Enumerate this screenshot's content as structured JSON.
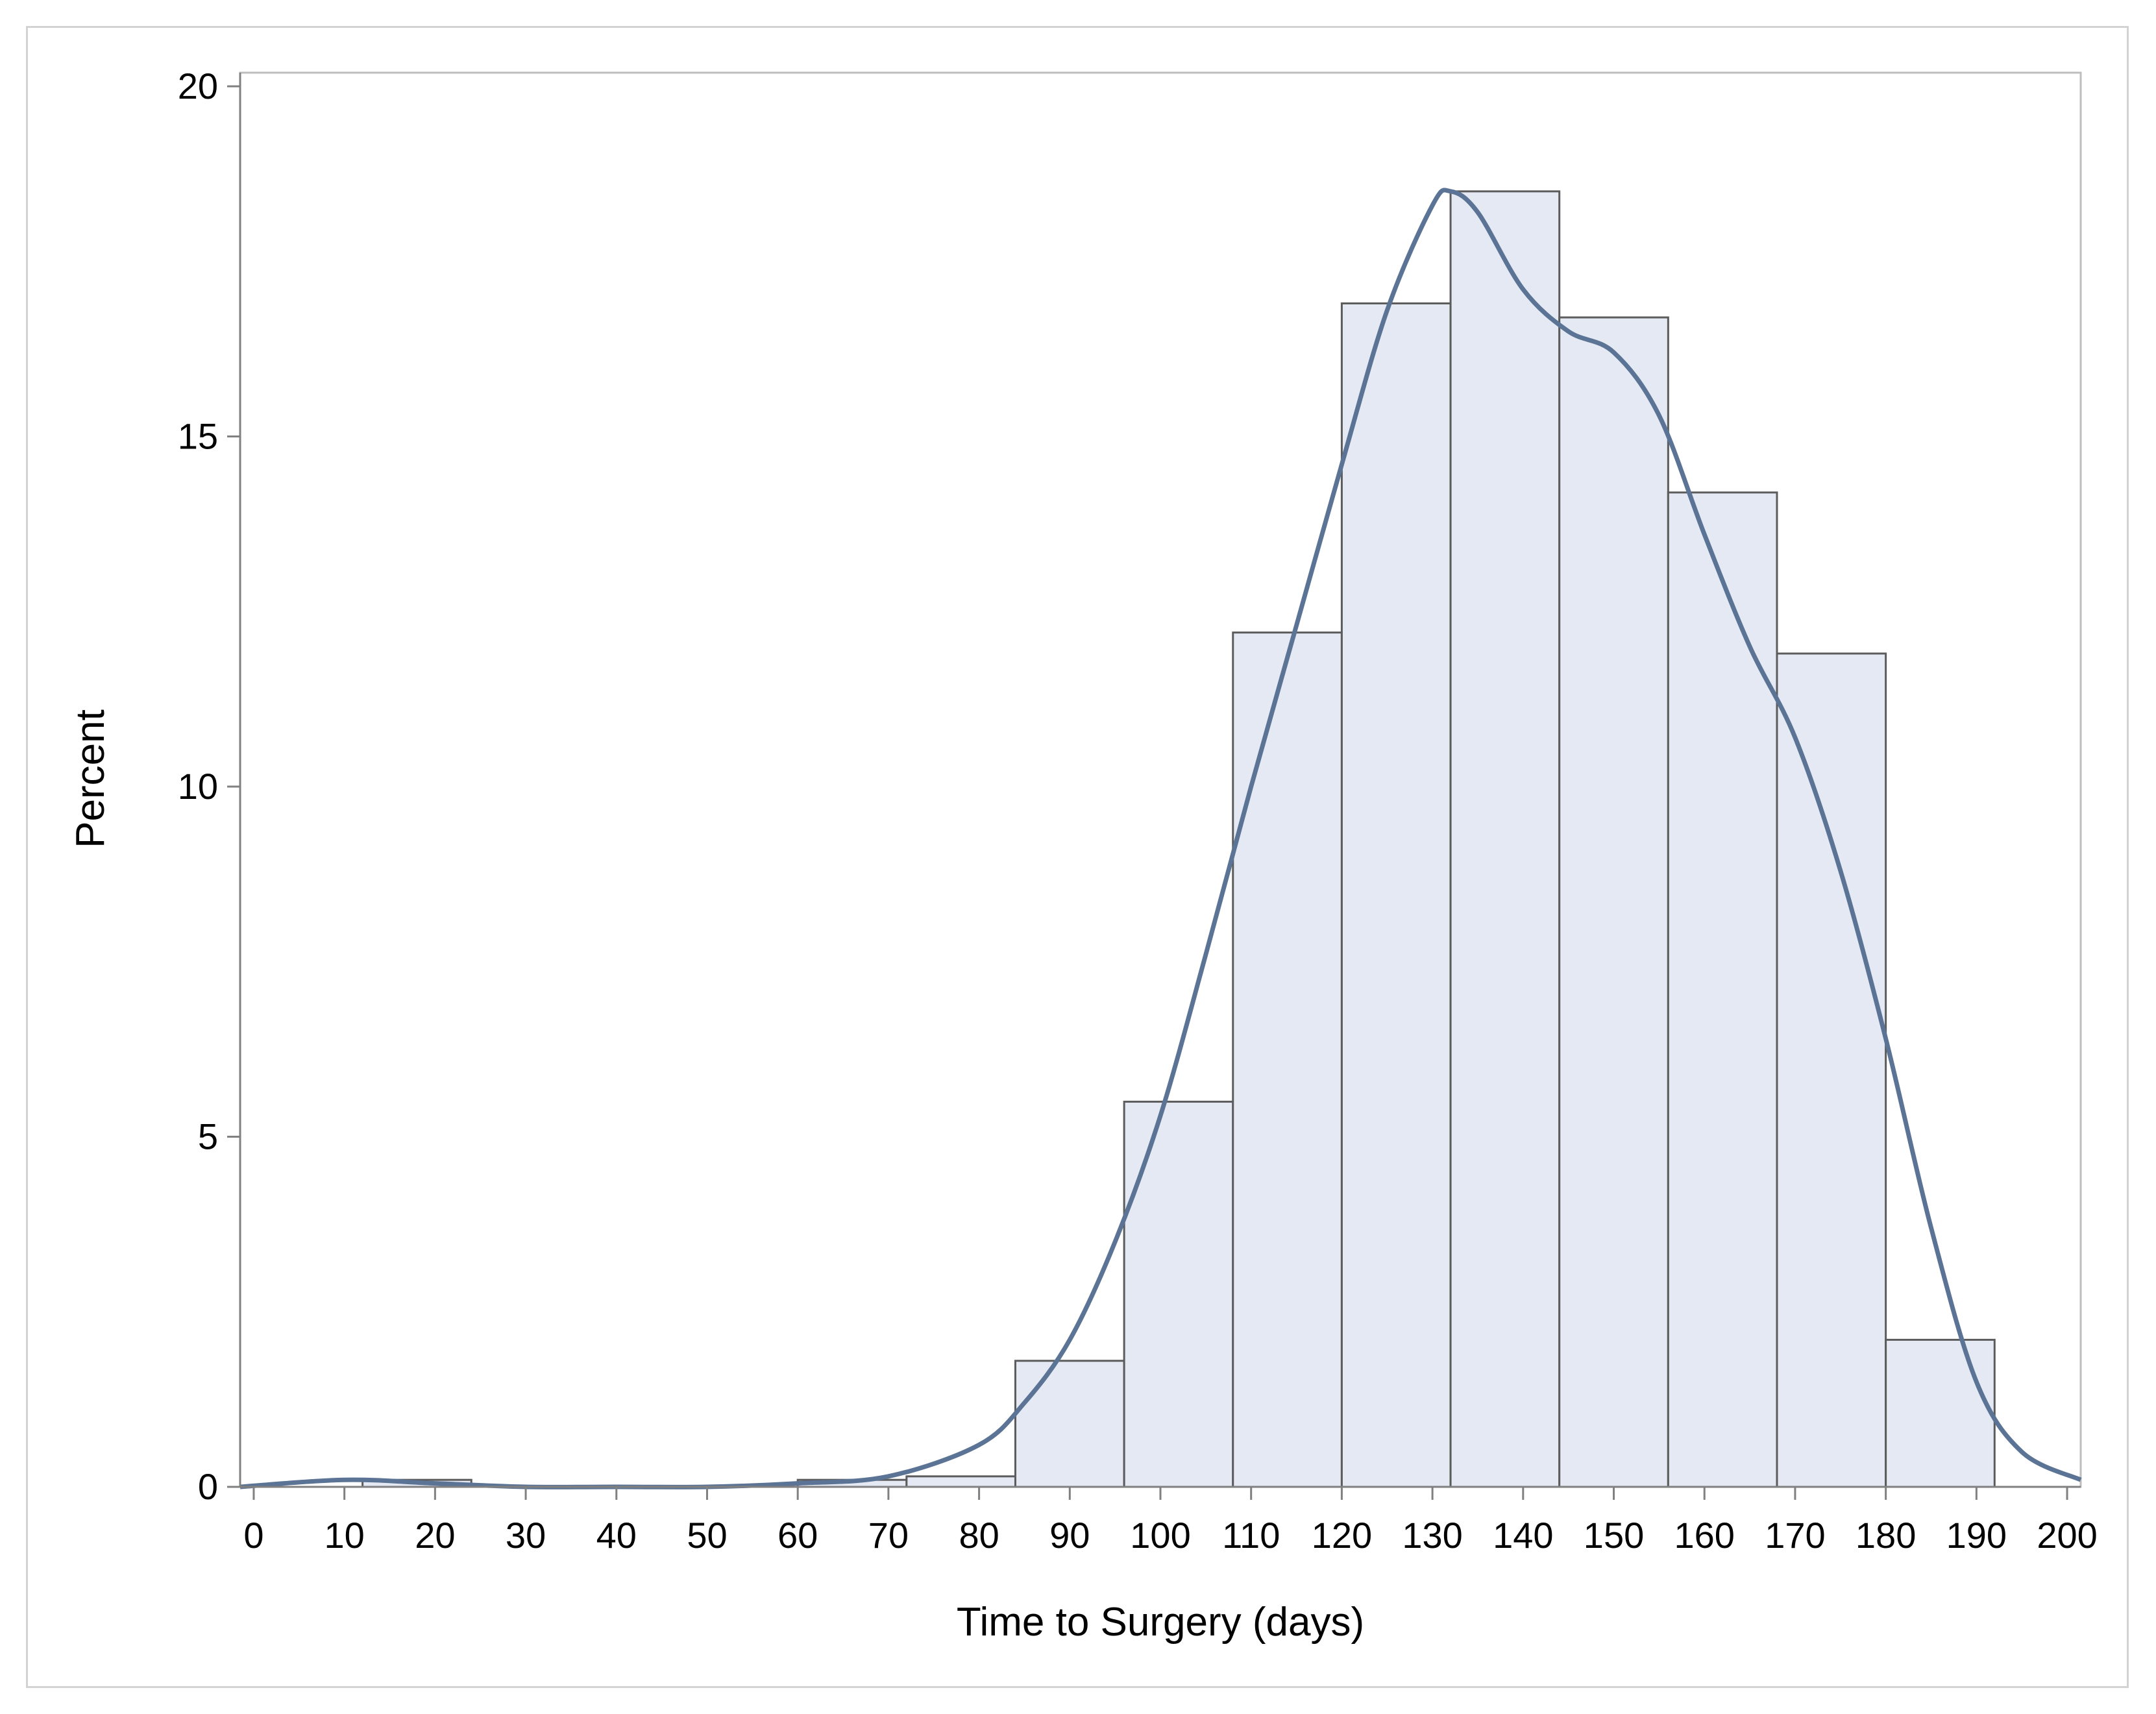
{
  "chart_data": {
    "type": "bar",
    "title": "",
    "xlabel": "Time to Surgery (days)",
    "ylabel": "Percent",
    "xlim": [
      -1.5,
      201.5
    ],
    "ylim": [
      0,
      20
    ],
    "x_ticks": [
      0,
      10,
      20,
      30,
      40,
      50,
      60,
      70,
      80,
      90,
      100,
      110,
      120,
      130,
      140,
      150,
      160,
      170,
      180,
      190,
      200
    ],
    "y_ticks": [
      0,
      5,
      10,
      15,
      20
    ],
    "grid": false,
    "legend": "none",
    "bins": [
      {
        "start": 12,
        "end": 24,
        "value": 0.1
      },
      {
        "start": 60,
        "end": 72,
        "value": 0.1
      },
      {
        "start": 72,
        "end": 84,
        "value": 0.15
      },
      {
        "start": 84,
        "end": 96,
        "value": 1.8
      },
      {
        "start": 96,
        "end": 108,
        "value": 5.5
      },
      {
        "start": 108,
        "end": 120,
        "value": 12.2
      },
      {
        "start": 120,
        "end": 132,
        "value": 16.9
      },
      {
        "start": 132,
        "end": 144,
        "value": 18.5
      },
      {
        "start": 144,
        "end": 156,
        "value": 16.7
      },
      {
        "start": 156,
        "end": 168,
        "value": 14.2
      },
      {
        "start": 168,
        "end": 180,
        "value": 11.9
      },
      {
        "start": 180,
        "end": 192,
        "value": 2.1
      }
    ],
    "density_curve": {
      "x": [
        -1.5,
        10,
        20,
        30,
        40,
        50,
        60,
        70,
        80,
        85,
        90,
        95,
        100,
        105,
        110,
        115,
        120,
        125,
        130,
        132,
        135,
        140,
        145,
        150,
        155,
        160,
        165,
        170,
        175,
        180,
        185,
        190,
        195,
        201.5
      ],
      "y": [
        0,
        0.1,
        0.05,
        0,
        0,
        0,
        0.05,
        0.15,
        0.6,
        1.2,
        2.1,
        3.5,
        5.3,
        7.6,
        10.0,
        12.3,
        14.6,
        16.8,
        18.3,
        18.5,
        18.2,
        17.1,
        16.5,
        16.2,
        15.3,
        13.6,
        12.0,
        10.7,
        8.8,
        6.4,
        3.7,
        1.5,
        0.5,
        0.1
      ]
    },
    "colors": {
      "bar_fill": "#e4e9f3",
      "bar_stroke": "#5c5c5c",
      "curve": "#5b7394",
      "axis": "#808080",
      "frame": "#d3d3d3"
    }
  }
}
